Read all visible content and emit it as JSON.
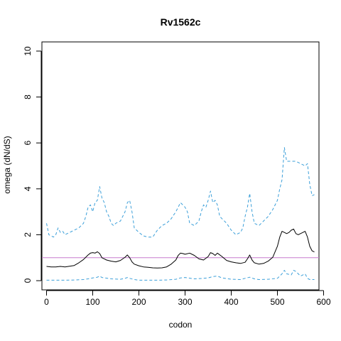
{
  "chart_data": {
    "type": "line",
    "title": "Rv1562c",
    "xlabel": "codon",
    "ylabel": "omega (dN/dS)",
    "xlim": [
      -10,
      590
    ],
    "ylim": [
      -0.4,
      10.4
    ],
    "xticks": [
      0,
      100,
      200,
      300,
      400,
      500,
      600
    ],
    "yticks": [
      0,
      2,
      4,
      6,
      8,
      10
    ],
    "grid": false,
    "reference_line": {
      "y": 1,
      "color": "#c77ccf"
    },
    "series": [
      {
        "style": "solid",
        "color": "#000000",
        "x": [
          0,
          10,
          20,
          30,
          40,
          50,
          60,
          70,
          80,
          90,
          95,
          100,
          105,
          110,
          115,
          120,
          125,
          130,
          140,
          150,
          160,
          170,
          175,
          180,
          185,
          190,
          200,
          210,
          220,
          230,
          240,
          250,
          260,
          270,
          280,
          285,
          290,
          295,
          300,
          310,
          320,
          330,
          340,
          350,
          355,
          360,
          365,
          370,
          380,
          390,
          400,
          410,
          420,
          430,
          435,
          440,
          445,
          450,
          460,
          470,
          480,
          490,
          500,
          505,
          510,
          515,
          520,
          525,
          530,
          535,
          540,
          545,
          550,
          555,
          560,
          565,
          570,
          575,
          580
        ],
        "y": [
          0.62,
          0.6,
          0.6,
          0.62,
          0.6,
          0.63,
          0.66,
          0.78,
          0.92,
          1.12,
          1.2,
          1.22,
          1.2,
          1.26,
          1.18,
          1.0,
          0.95,
          0.9,
          0.85,
          0.82,
          0.88,
          1.02,
          1.12,
          1.0,
          0.82,
          0.72,
          0.65,
          0.6,
          0.58,
          0.56,
          0.55,
          0.56,
          0.6,
          0.72,
          0.9,
          1.1,
          1.2,
          1.18,
          1.15,
          1.2,
          1.1,
          0.95,
          0.9,
          1.05,
          1.22,
          1.18,
          1.1,
          1.2,
          1.05,
          0.88,
          0.82,
          0.78,
          0.75,
          0.8,
          0.95,
          1.12,
          0.9,
          0.78,
          0.72,
          0.75,
          0.85,
          1.02,
          1.5,
          1.9,
          2.15,
          2.1,
          2.05,
          2.1,
          2.2,
          2.25,
          2.05,
          2.0,
          2.05,
          2.1,
          2.15,
          1.9,
          1.5,
          1.3,
          1.25
        ]
      },
      {
        "style": "dashed",
        "color": "#3b9fd9",
        "x": [
          0,
          5,
          10,
          15,
          20,
          25,
          30,
          35,
          40,
          50,
          60,
          70,
          80,
          85,
          90,
          95,
          100,
          105,
          110,
          115,
          120,
          125,
          130,
          135,
          140,
          145,
          150,
          160,
          170,
          175,
          180,
          185,
          190,
          200,
          210,
          220,
          230,
          240,
          250,
          260,
          270,
          280,
          285,
          290,
          295,
          300,
          305,
          310,
          320,
          330,
          335,
          340,
          345,
          350,
          355,
          360,
          365,
          370,
          375,
          380,
          390,
          400,
          410,
          420,
          425,
          430,
          435,
          440,
          445,
          450,
          460,
          470,
          480,
          490,
          500,
          505,
          510,
          515,
          520,
          530,
          540,
          550,
          560,
          565,
          570,
          575,
          580
        ],
        "y": [
          2.5,
          2.0,
          1.95,
          1.9,
          2.0,
          2.3,
          2.1,
          2.15,
          2.0,
          2.1,
          2.2,
          2.3,
          2.5,
          2.8,
          3.2,
          3.3,
          3.0,
          3.4,
          3.5,
          4.1,
          3.6,
          3.4,
          3.0,
          2.8,
          2.5,
          2.4,
          2.5,
          2.6,
          3.0,
          3.4,
          3.5,
          3.0,
          2.3,
          2.1,
          1.95,
          1.9,
          1.9,
          2.2,
          2.4,
          2.5,
          2.7,
          3.0,
          3.2,
          3.4,
          3.3,
          3.2,
          3.0,
          2.5,
          2.4,
          2.6,
          3.0,
          3.3,
          3.2,
          3.5,
          3.9,
          3.4,
          3.5,
          3.3,
          2.8,
          2.7,
          2.5,
          2.2,
          2.0,
          2.1,
          2.3,
          2.8,
          3.2,
          3.8,
          3.0,
          2.5,
          2.4,
          2.6,
          2.8,
          3.1,
          3.5,
          4.0,
          4.4,
          5.8,
          5.2,
          5.2,
          5.2,
          5.1,
          5.0,
          5.1,
          4.2,
          3.7,
          3.75
        ]
      },
      {
        "style": "dashed",
        "color": "#3b9fd9",
        "x": [
          0,
          20,
          40,
          60,
          80,
          90,
          100,
          110,
          115,
          120,
          140,
          160,
          170,
          175,
          180,
          190,
          200,
          220,
          240,
          260,
          280,
          290,
          300,
          320,
          340,
          350,
          360,
          370,
          380,
          400,
          420,
          430,
          440,
          450,
          460,
          480,
          500,
          510,
          515,
          520,
          530,
          535,
          540,
          550,
          560,
          565,
          570,
          580
        ],
        "y": [
          0.02,
          0.02,
          0.02,
          0.03,
          0.05,
          0.08,
          0.12,
          0.15,
          0.2,
          0.14,
          0.08,
          0.06,
          0.1,
          0.14,
          0.1,
          0.05,
          0.02,
          0.02,
          0.02,
          0.03,
          0.06,
          0.12,
          0.14,
          0.08,
          0.1,
          0.12,
          0.18,
          0.2,
          0.12,
          0.06,
          0.05,
          0.1,
          0.15,
          0.08,
          0.05,
          0.06,
          0.1,
          0.3,
          0.45,
          0.3,
          0.25,
          0.45,
          0.4,
          0.2,
          0.3,
          0.1,
          0.05,
          0.05
        ]
      }
    ]
  }
}
